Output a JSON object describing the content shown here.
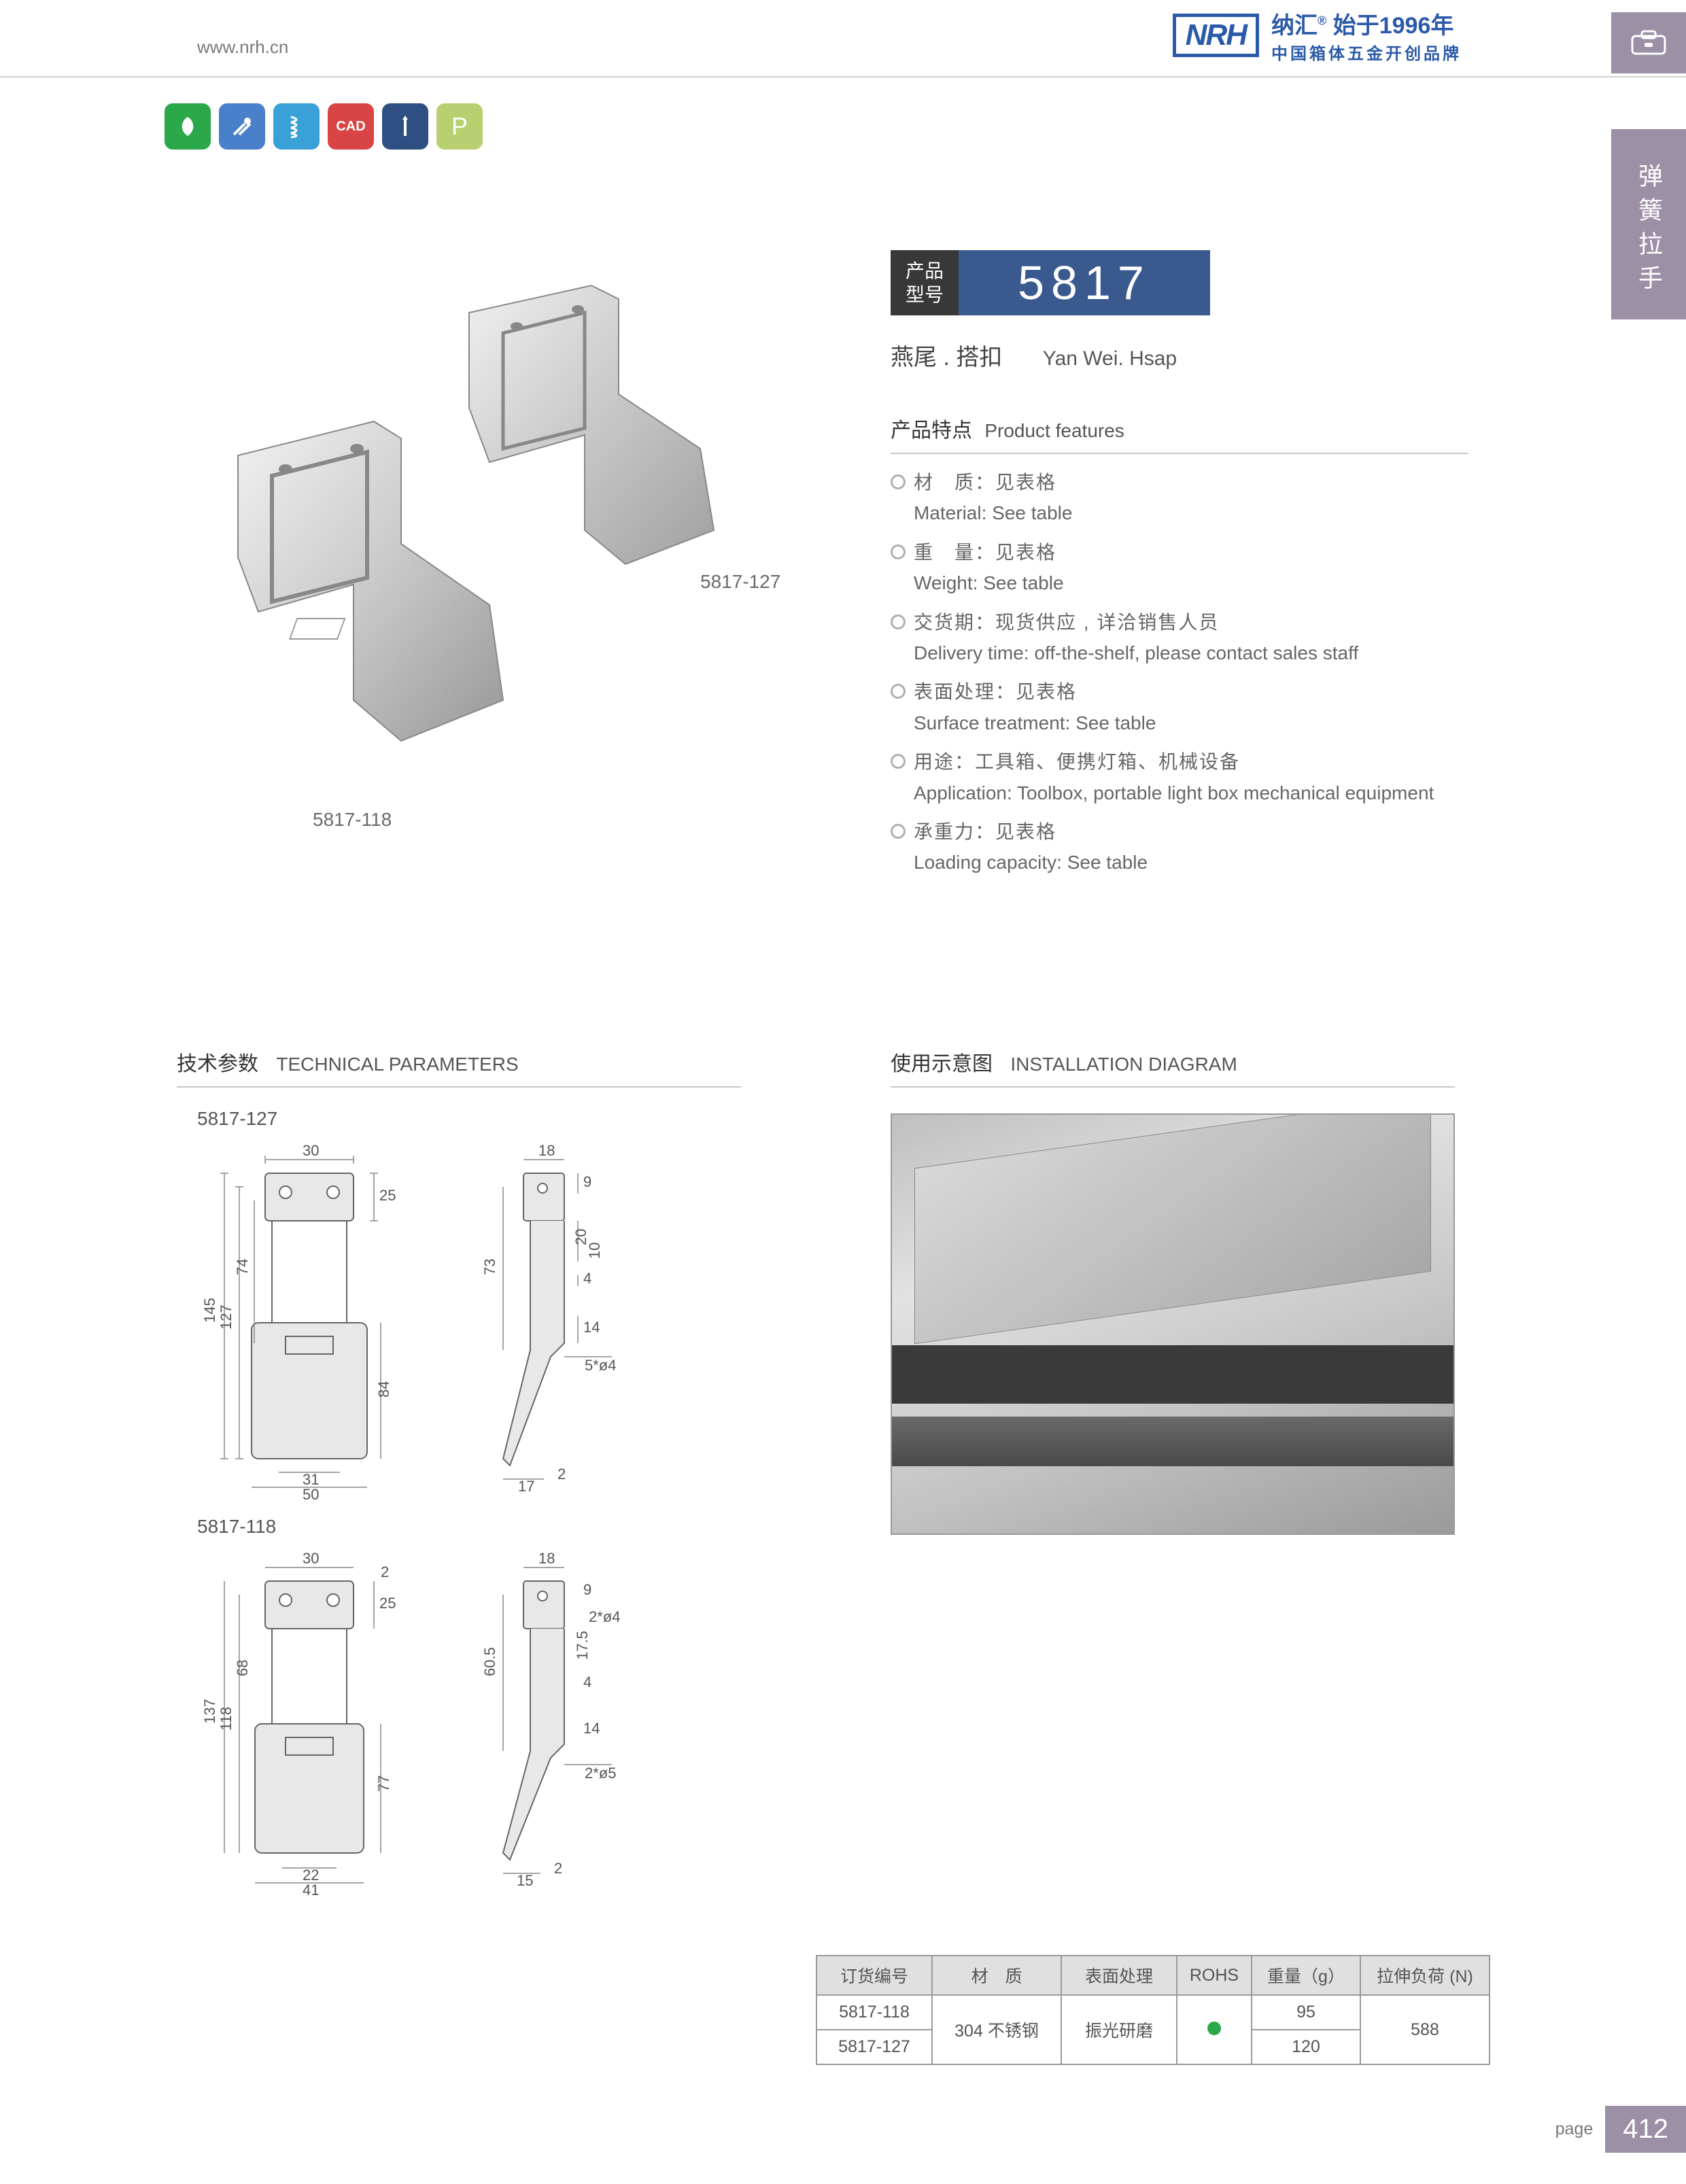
{
  "header": {
    "url": "www.nrh.cn",
    "brand_logo": "NRH",
    "brand_line1_a": "纳汇",
    "brand_line1_b": "始于1996年",
    "brand_line2": "中国箱体五金开创品牌"
  },
  "side_tab": {
    "text": "弹簧拉手"
  },
  "icon_strip": [
    {
      "name": "eco-icon",
      "color": "#2aa84a"
    },
    {
      "name": "tools-icon",
      "color": "#4a7fc9"
    },
    {
      "name": "spring-icon",
      "color": "#3aa0d8"
    },
    {
      "name": "cad-icon",
      "color": "#d94444",
      "label": "CAD"
    },
    {
      "name": "screw-icon",
      "color": "#2f4e82"
    },
    {
      "name": "p-icon",
      "color": "#b8d070",
      "label": "P"
    }
  ],
  "product_labels": {
    "left": "5817-118",
    "right": "5817-127"
  },
  "model_badge": {
    "left_line1": "产品",
    "left_line2": "型号",
    "number": "5817"
  },
  "product_name": {
    "cn": "燕尾 . 搭扣",
    "en": "Yan Wei. Hsap"
  },
  "features": {
    "title_cn": "产品特点",
    "title_en": "Product features",
    "items": [
      {
        "cn": "材　质：见表格",
        "en": "Material: See table"
      },
      {
        "cn": "重　量：见表格",
        "en": "Weight: See table"
      },
      {
        "cn": "交货期：现货供应 , 详洽销售人员",
        "en": "Delivery time: off-the-shelf, please contact sales staff"
      },
      {
        "cn": "表面处理：见表格",
        "en": "Surface treatment:   See table"
      },
      {
        "cn": "用途：工具箱、便携灯箱、机械设备",
        "en": "Application: Toolbox, portable light box mechanical equipment"
      },
      {
        "cn": "承重力：见表格",
        "en": "Loading capacity: See table"
      }
    ]
  },
  "sections": {
    "tech_cn": "技术参数",
    "tech_en": "TECHNICAL PARAMETERS",
    "install_cn": "使用示意图",
    "install_en": "INSTALLATION DIAGRAM"
  },
  "diagrams": [
    {
      "label": "5817-127",
      "front": {
        "w_top": "30",
        "h_total": "145",
        "h_inner": "127",
        "h_upper": "74",
        "h_lower": "84",
        "w_bot_in": "31",
        "w_bot_out": "50",
        "h_tab": "25"
      },
      "side": {
        "w_top": "18",
        "h_total": "73",
        "gap_top": "9",
        "gap_mid": "4",
        "h_mid": "14",
        "w_bot": "17",
        "tail": "2",
        "hole": "5*ø4",
        "h_20": "20",
        "h_10": "10"
      }
    },
    {
      "label": "5817-118",
      "front": {
        "w_top": "30",
        "h_total": "137",
        "h_inner": "118",
        "h_upper": "68",
        "h_lower": "77",
        "w_bot_in": "22",
        "w_bot_out": "41",
        "h_tab": "25",
        "tail": "2"
      },
      "side": {
        "w_top": "18",
        "h_total": "60.5",
        "gap_top": "9",
        "gap_mid": "4",
        "h_mid": "14",
        "w_bot": "15",
        "tail": "2",
        "hole": "2*ø5",
        "hole2": "2*ø4",
        "h_17": "17.5"
      }
    }
  ],
  "spec_table": {
    "headers": [
      "订货编号",
      "材　质",
      "表面处理",
      "ROHS",
      "重量（g）",
      "拉伸负荷 (N)"
    ],
    "material": "304 不锈钢",
    "surface": "振光研磨",
    "rohs_color": "#2aa84a",
    "rows": [
      {
        "code": "5817-118",
        "weight": "95"
      },
      {
        "code": "5817-127",
        "weight": "120"
      }
    ],
    "load": "588"
  },
  "footer": {
    "label": "page",
    "number": "412"
  },
  "colors": {
    "accent_purple": "#9b90a5",
    "accent_blue": "#3a5a8f",
    "brand_blue": "#2b5aa8"
  }
}
